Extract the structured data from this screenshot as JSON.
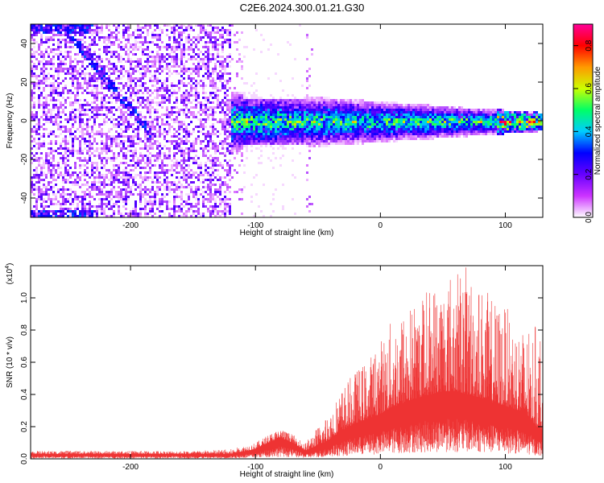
{
  "title": "C2E6.2024.300.01.21.G30",
  "colors": {
    "spectrogram_background": "#ffffff",
    "snr_line": "#ee3333",
    "frame": "#000000"
  },
  "chart_data": [
    {
      "type": "heatmap",
      "xlabel": "Height of straight line (km)",
      "ylabel": "Frequency (Hz)",
      "xlim": [
        -280,
        130
      ],
      "ylim": [
        -50,
        50
      ],
      "xticks": [
        -200,
        -100,
        0,
        100
      ],
      "xtick_labels": [
        "-200",
        "-100",
        "0",
        "100"
      ],
      "yticks": [
        -40,
        -20,
        0,
        20,
        40
      ],
      "ytick_labels": [
        "-40",
        "-20",
        "0",
        "20",
        "40"
      ],
      "colorbar": {
        "label": "Normalized spectral amplitude",
        "range": [
          0,
          0.9
        ],
        "ticks": [
          0.0,
          0.2,
          0.4,
          0.6,
          0.8
        ],
        "tick_labels": [
          "0.0",
          "0.2",
          "0.4",
          "0.6",
          "0.8"
        ],
        "colormap": [
          "#ffffff",
          "#cc33ff",
          "#6600ff",
          "#0000ff",
          "#00ccff",
          "#00ff66",
          "#ccff00",
          "#ff9900",
          "#ff0000",
          "#ff0099"
        ]
      },
      "signal_band": {
        "center_hz": 0,
        "half_width_hz_at_start": 10,
        "half_width_hz_at_end": 3,
        "start_km": -120,
        "end_km": 130
      },
      "noise_region": {
        "start_km": -280,
        "end_km": -120
      },
      "gap_region": [
        -110,
        -60
      ]
    },
    {
      "type": "line",
      "ylabel": "SNR (10 * v/v)",
      "xlabel": "Height of straight line (km)",
      "exponent_label": "(x10",
      "exponent_sup": "4",
      "exponent_close": ")",
      "xlim": [
        -280,
        130
      ],
      "ylim": [
        0,
        1.2
      ],
      "xticks": [
        -200,
        -100,
        0,
        100
      ],
      "xtick_labels": [
        "-200",
        "-100",
        "0",
        "100"
      ],
      "yticks": [
        0.0,
        0.2,
        0.4,
        0.6,
        0.8,
        1.0
      ],
      "ytick_labels": [
        "0.0",
        "0.2",
        "0.4",
        "0.6",
        "0.8",
        "1.0"
      ],
      "envelope": {
        "x": [
          -280,
          -150,
          -120,
          -100,
          -90,
          -80,
          -70,
          -60,
          -45,
          -30,
          -20,
          -10,
          0,
          10,
          20,
          30,
          40,
          50,
          60,
          70,
          80,
          90,
          100,
          110,
          120,
          125,
          130
        ],
        "base": [
          0.03,
          0.03,
          0.03,
          0.06,
          0.1,
          0.13,
          0.1,
          0.05,
          0.1,
          0.18,
          0.22,
          0.25,
          0.28,
          0.32,
          0.35,
          0.38,
          0.4,
          0.42,
          0.42,
          0.4,
          0.38,
          0.35,
          0.33,
          0.3,
          0.25,
          0.2,
          0.18
        ],
        "peak": [
          0.05,
          0.05,
          0.06,
          0.1,
          0.15,
          0.19,
          0.15,
          0.1,
          0.25,
          0.45,
          0.55,
          0.62,
          0.75,
          0.88,
          0.95,
          1.0,
          1.1,
          1.15,
          1.2,
          1.2,
          1.1,
          1.0,
          0.95,
          0.85,
          0.78,
          0.85,
          0.8
        ]
      }
    }
  ]
}
